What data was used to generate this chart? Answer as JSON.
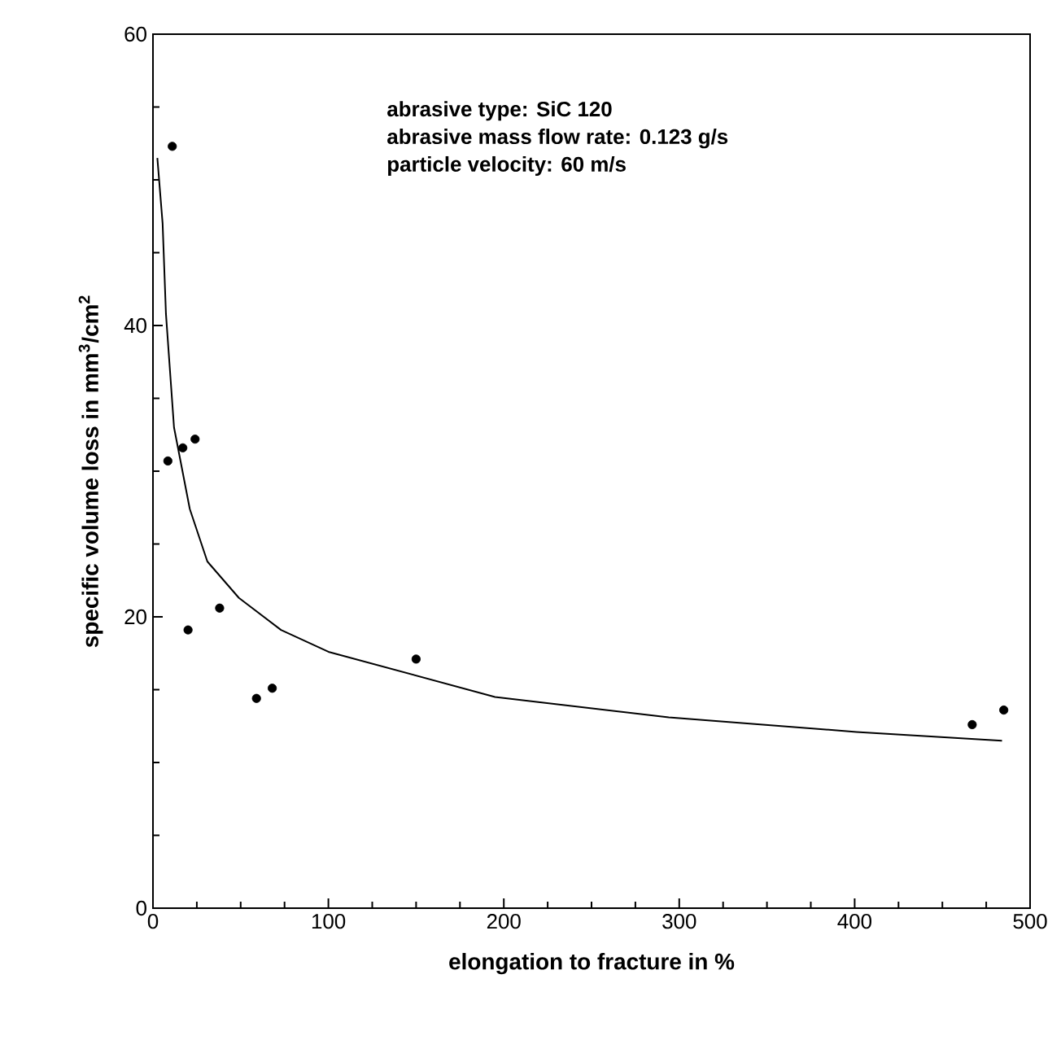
{
  "chart_data": {
    "type": "scatter",
    "xlabel": "elongation to fracture in %",
    "ylabel": "specific volume loss in mm$^{3}$/cm$^{2}$",
    "xlim": [
      0,
      500
    ],
    "ylim": [
      0,
      60
    ],
    "xticks": [
      0,
      100,
      200,
      300,
      400,
      500
    ],
    "yticks": [
      0,
      20,
      40,
      60
    ],
    "grid": false,
    "annotations": [
      "abrasive type: SiC 120",
      "abrasive mass flow rate: 0.123 g/s",
      "particle velocity: 60 m/s"
    ],
    "series": [
      {
        "color": "#000000",
        "marker": "circle",
        "x": [
          11,
          8.5,
          17,
          24,
          20,
          38,
          59,
          68,
          150,
          467,
          485
        ],
        "values": [
          52.3,
          30.7,
          31.6,
          32.2,
          19.1,
          20.6,
          14.4,
          15.1,
          17.1,
          12.6,
          13.6
        ]
      },
      {
        "type": "line",
        "color": "#000000",
        "marker": "none",
        "line_style": "solid",
        "x": [
          2.5,
          5.5,
          7.4,
          12,
          21,
          31,
          49,
          73,
          100,
          195,
          294,
          401,
          484
        ],
        "values": [
          51.5,
          47,
          40.8,
          33,
          27.4,
          23.8,
          21.3,
          19.1,
          17.6,
          14.5,
          13.1,
          12.1,
          11.5
        ]
      }
    ]
  }
}
